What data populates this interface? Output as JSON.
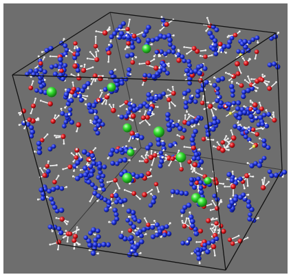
{
  "scene": {
    "background": "#6e6e6e",
    "box_edge_color": "#111111",
    "atom_colors": {
      "blue": "#1c2fd6",
      "red": "#d8151b",
      "white": "#f1f1f1",
      "green": "#2fd82f",
      "yellow": "#e8e23a"
    },
    "icon": "molecular-dynamics-simulation-box",
    "counts": {
      "blue_clusters": 170,
      "red_centers": 160,
      "green_ions": 11,
      "yellow_atoms": 3
    }
  }
}
